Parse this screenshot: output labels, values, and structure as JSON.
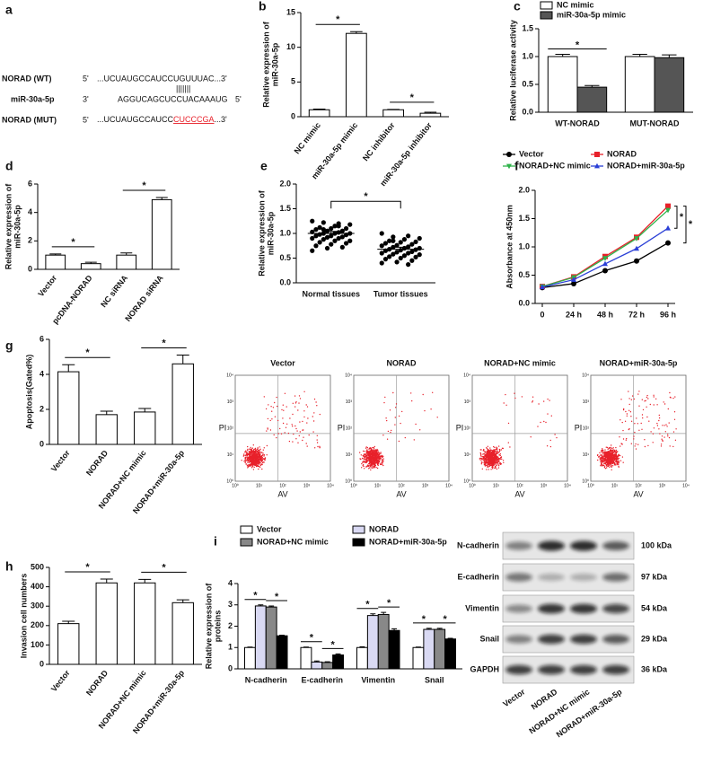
{
  "panel_a": {
    "panel": "a",
    "rows": [
      {
        "name": "NORAD (WT)",
        "left": "5'",
        "seq": "...UCUAUGCCAUCCUGUUUAC...3'"
      },
      {
        "name": "miR-30a-5p",
        "left": "3'",
        "seq": "AGGUCAGCUCCUACAAAUG",
        "right": "5'"
      },
      {
        "name": "NORAD (MUT)",
        "left": "5'",
        "seq": [
          "...UCUAUGCCAUCC",
          "CUCCCGA",
          "...3'"
        ]
      }
    ],
    "pairing": "|||||||"
  },
  "chart_data": [
    {
      "type": "bar",
      "panel": "b",
      "y_label": [
        "Relative expression of",
        "miR-30a-5p"
      ],
      "categories": [
        "NC mimic",
        "miR-30a-5p mimic",
        "NC inhibitor",
        "miR-30a-5p inhibitor"
      ],
      "values": [
        1.0,
        12.0,
        1.0,
        0.5
      ],
      "errors": [
        0.1,
        0.25,
        0.05,
        0.15
      ],
      "color": "#ffffff",
      "ylim": [
        0,
        15
      ],
      "yticks": [
        0,
        5,
        10,
        15
      ],
      "annotations": [
        {
          "text": "*",
          "between": [
            0,
            1
          ]
        },
        {
          "text": "*",
          "between": [
            2,
            3
          ]
        }
      ]
    },
    {
      "type": "grouped_bar",
      "panel": "c",
      "y_label": [
        "Relative luciferase activity"
      ],
      "categories": [
        "WT-NORAD",
        "MUT-NORAD"
      ],
      "series": [
        {
          "name": "NC mimic",
          "color": "#ffffff",
          "values": [
            1.0,
            1.0
          ],
          "errors": [
            0.04,
            0.04
          ]
        },
        {
          "name": "miR-30a-5p mimic",
          "color": "#555555",
          "values": [
            0.45,
            0.98
          ],
          "errors": [
            0.03,
            0.05
          ]
        }
      ],
      "ylim": [
        0,
        1.5
      ],
      "yticks": [
        {
          "value": 0,
          "label": "0.0"
        },
        0.5,
        {
          "value": 1,
          "label": "1.0"
        },
        1.5
      ],
      "annotations": [
        {
          "text": "*",
          "category": 0,
          "between": [
            0,
            1
          ]
        }
      ]
    },
    {
      "type": "bar",
      "panel": "d",
      "y_label": [
        "Relative expression of",
        "miR-30a-5p"
      ],
      "categories": [
        "Vector",
        "pcDNA-NORAD",
        "NC siRNA",
        "NORAD siRNA"
      ],
      "values": [
        1.0,
        0.4,
        1.0,
        4.9
      ],
      "errors": [
        0.08,
        0.1,
        0.15,
        0.15
      ],
      "color": "#ffffff",
      "ylim": [
        0,
        6
      ],
      "yticks": [
        0,
        2,
        4,
        6
      ],
      "annotations": [
        {
          "text": "*",
          "between": [
            0,
            1
          ]
        },
        {
          "text": "*",
          "between": [
            2,
            3
          ]
        }
      ]
    },
    {
      "type": "dot",
      "panel": "e",
      "y_label": [
        "Relative expression of",
        "miR-30a-5p"
      ],
      "categories": [
        "Normal tissues",
        "Tumor tissues"
      ],
      "values": [
        [
          1.25,
          1.2,
          1.22,
          1.18,
          1.15,
          1.12,
          1.1,
          1.1,
          1.08,
          1.05,
          1.05,
          1.03,
          1.02,
          1.0,
          1.0,
          1.0,
          0.98,
          0.97,
          0.95,
          0.95,
          0.93,
          0.92,
          0.9,
          0.9,
          0.88,
          0.85,
          0.85,
          0.82,
          0.8,
          0.78,
          0.75,
          0.72,
          0.7,
          0.65,
          1.15,
          1.08
        ],
        [
          1.0,
          0.95,
          0.93,
          0.9,
          0.88,
          0.85,
          0.83,
          0.82,
          0.8,
          0.78,
          0.76,
          0.75,
          0.73,
          0.72,
          0.7,
          0.7,
          0.68,
          0.67,
          0.66,
          0.65,
          0.63,
          0.62,
          0.6,
          0.6,
          0.58,
          0.57,
          0.55,
          0.53,
          0.52,
          0.5,
          0.48,
          0.45,
          0.42,
          0.4,
          0.37,
          0.85
        ]
      ],
      "means": [
        1.0,
        0.68
      ],
      "errors": [
        0.04,
        0.04
      ],
      "color": "#000000",
      "ylim": [
        0,
        2
      ],
      "yticks": [
        {
          "value": 0,
          "label": "0.0"
        },
        0.5,
        {
          "value": 1,
          "label": "1.0"
        },
        1.5,
        {
          "value": 2,
          "label": "2.0"
        }
      ],
      "annotations": [
        {
          "text": "*",
          "between": [
            0,
            1
          ]
        }
      ]
    },
    {
      "type": "line",
      "panel": "f",
      "y_label": [
        "Absorbance at 450nm"
      ],
      "categories": [
        "0",
        "24 h",
        "48 h",
        "72 h",
        "96 h"
      ],
      "series": [
        {
          "name": "Vector",
          "color": "#000000",
          "marker": "circle",
          "values": [
            0.28,
            0.35,
            0.58,
            0.75,
            1.07
          ]
        },
        {
          "name": "NORAD",
          "color": "#e8202a",
          "marker": "square",
          "values": [
            0.3,
            0.47,
            0.83,
            1.17,
            1.72
          ]
        },
        {
          "name": "NORAD+NC mimic",
          "color": "#2fb24a",
          "marker": "triangle-down",
          "values": [
            0.3,
            0.46,
            0.8,
            1.15,
            1.65
          ]
        },
        {
          "name": "NORAD+miR-30a-5p",
          "color": "#2a3fd6",
          "marker": "triangle-up",
          "values": [
            0.29,
            0.42,
            0.7,
            0.97,
            1.33
          ]
        }
      ],
      "ylim": [
        0,
        2
      ],
      "yticks": [
        {
          "value": 0,
          "label": "0.0"
        },
        0.5,
        {
          "value": 1,
          "label": "1.0"
        },
        1.5,
        {
          "value": 2,
          "label": "2.0"
        }
      ],
      "annotations": [
        {
          "text": "*",
          "between": [
            1,
            3
          ]
        },
        {
          "text": "*",
          "between": [
            1,
            0
          ]
        }
      ]
    },
    {
      "type": "bar",
      "panel": "g",
      "y_label": [
        "Apoptosis(Gated%)"
      ],
      "categories": [
        "Vector",
        "NORAD",
        "NORAD+NC mimic",
        "NORAD+miR-30a-5p"
      ],
      "values": [
        4.15,
        1.7,
        1.85,
        4.6
      ],
      "errors": [
        0.4,
        0.2,
        0.2,
        0.5
      ],
      "color": "#ffffff",
      "ylim": [
        0,
        6
      ],
      "yticks": [
        0,
        2,
        4,
        6
      ],
      "annotations": [
        {
          "text": "*",
          "between": [
            0,
            1
          ]
        },
        {
          "text": "*",
          "between": [
            2,
            3
          ]
        }
      ]
    },
    {
      "type": "bar",
      "panel": "h",
      "y_label": [
        "Invasion cell numbers"
      ],
      "categories": [
        "Vector",
        "NORAD",
        "NORAD+NC mimic",
        "NORAD+miR-30a-5p"
      ],
      "values": [
        210,
        420,
        420,
        318
      ],
      "errors": [
        12,
        20,
        18,
        15
      ],
      "color": "#ffffff",
      "ylim": [
        0,
        500
      ],
      "yticks": [
        0,
        100,
        200,
        300,
        400,
        500
      ],
      "annotations": [
        {
          "text": "*",
          "between": [
            0,
            1
          ]
        },
        {
          "text": "*",
          "between": [
            2,
            3
          ]
        }
      ]
    },
    {
      "type": "grouped_bar",
      "panel": "i",
      "y_label": [
        "Relative expression of",
        "proteins"
      ],
      "categories": [
        "N-cadherin",
        "E-cadherin",
        "Vimentin",
        "Snail"
      ],
      "series": [
        {
          "name": "Vector",
          "color": "#ffffff",
          "values": [
            1.0,
            1.0,
            1.0,
            1.0
          ],
          "errors": [
            0.02,
            0.02,
            0.03,
            0.02
          ]
        },
        {
          "name": "NORAD",
          "color": "#d9d9f3",
          "values": [
            2.95,
            0.32,
            2.5,
            1.85
          ],
          "errors": [
            0.05,
            0.05,
            0.08,
            0.05
          ]
        },
        {
          "name": "NORAD+NC mimic",
          "color": "#888888",
          "values": [
            2.9,
            0.3,
            2.55,
            1.85
          ],
          "errors": [
            0.05,
            0.03,
            0.1,
            0.05
          ]
        },
        {
          "name": "NORAD+miR-30a-5p",
          "color": "#000000",
          "values": [
            1.55,
            0.65,
            1.8,
            1.4
          ],
          "errors": [
            0.03,
            0.05,
            0.08,
            0.03
          ]
        }
      ],
      "ylim": [
        0,
        4
      ],
      "yticks": [
        0,
        1,
        2,
        3,
        4
      ],
      "annotations": [
        {
          "text": "*",
          "category": 0,
          "between": [
            0,
            1
          ]
        },
        {
          "text": "*",
          "category": 0,
          "between": [
            2,
            3
          ]
        },
        {
          "text": "*",
          "category": 1,
          "between": [
            0,
            1
          ]
        },
        {
          "text": "*",
          "category": 1,
          "between": [
            2,
            3
          ]
        },
        {
          "text": "*",
          "category": 2,
          "between": [
            0,
            1
          ]
        },
        {
          "text": "*",
          "category": 2,
          "between": [
            2,
            3
          ]
        },
        {
          "text": "*",
          "category": 3,
          "between": [
            0,
            1
          ]
        },
        {
          "text": "*",
          "category": 3,
          "between": [
            2,
            3
          ]
        }
      ]
    }
  ],
  "flow_cytometry": {
    "titles": [
      "Vector",
      "NORAD",
      "NORAD+NC mimic",
      "NORAD+miR-30a-5p"
    ],
    "y_axis": "PI",
    "x_axis": "AV",
    "decades": [
      "10⁰",
      "10¹",
      "10²",
      "10³",
      "10⁴"
    ]
  },
  "western_blot": {
    "proteins": [
      "N-cadherin",
      "E-cadherin",
      "Vimentin",
      "Snail",
      "GAPDH"
    ],
    "sizes": [
      "100 kDa",
      "97 kDa",
      "54 kDa",
      "29 kDa",
      "36 kDa"
    ],
    "lanes": [
      "Vector",
      "NORAD",
      "NORAD+NC mimic",
      "NORAD+miR-30a-5p"
    ]
  }
}
